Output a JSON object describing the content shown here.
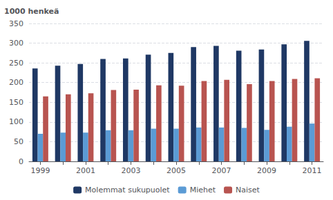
{
  "chart_data": {
    "type": "bar",
    "ylabel": "1000 henkeä",
    "categories": [
      "1999",
      null,
      "2001",
      null,
      "2003",
      null,
      "2005",
      null,
      "2007",
      null,
      "2009",
      null,
      "2011"
    ],
    "series": [
      {
        "name": "Molemmat sukupuolet",
        "color": "#1F3864",
        "values": [
          236,
          243,
          247,
          260,
          261,
          271,
          275,
          290,
          293,
          281,
          284,
          297,
          306
        ]
      },
      {
        "name": "Miehet",
        "color": "#5B9BD5",
        "values": [
          70,
          73,
          73,
          79,
          79,
          83,
          83,
          86,
          86,
          85,
          80,
          88,
          96
        ]
      },
      {
        "name": "Naiset",
        "color": "#B85450",
        "values": [
          165,
          170,
          173,
          181,
          182,
          193,
          192,
          204,
          207,
          196,
          204,
          209,
          211
        ]
      }
    ],
    "ylim": [
      0,
      350
    ],
    "yticks": [
      0,
      50,
      100,
      150,
      200,
      250,
      300,
      350
    ],
    "grid": true,
    "legend": "bottom"
  }
}
